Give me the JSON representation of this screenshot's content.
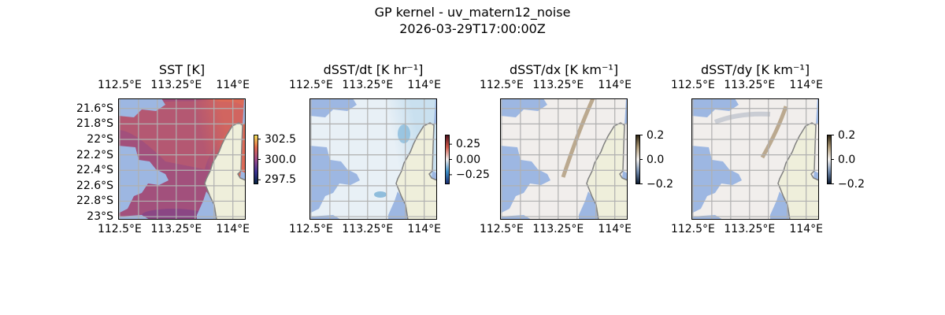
{
  "figure": {
    "title_line1": "GP kernel - uv_matern12_noise",
    "title_line2": "2026-03-29T17:00:00Z"
  },
  "map": {
    "lon_ticks": [
      "112.5°E",
      "113.25°E",
      "114°E"
    ],
    "lon_tick_values": [
      112.5,
      113.25,
      114.0
    ],
    "lat_ticks": [
      "21.6°S",
      "21.8°S",
      "22°S",
      "22.2°S",
      "22.4°S",
      "22.6°S",
      "22.8°S",
      "23°S"
    ],
    "lat_tick_values": [
      -21.6,
      -21.8,
      -22.0,
      -22.2,
      -22.4,
      -22.6,
      -22.8,
      -23.0
    ],
    "lon_range": [
      112.48,
      114.17
    ],
    "lat_range": [
      -21.47,
      -23.04
    ],
    "colors": {
      "land": "#efefdb",
      "missing": "#9db7e2",
      "coast": "#808080",
      "grid": "#b0b0b0"
    }
  },
  "panels": [
    {
      "title": "SST [K]",
      "cmap": "thermal",
      "cbar_ticks": [
        "302.5",
        "300.0",
        "297.5"
      ],
      "cbar_values": [
        302.5,
        300.0,
        297.5
      ],
      "cbar_range": [
        297.0,
        303.0
      ],
      "show_lat": true
    },
    {
      "title": "dSST/dt [K hr⁻¹]",
      "cmap": "balance",
      "cbar_ticks": [
        "0.25",
        "0.00",
        "−0.25"
      ],
      "cbar_values": [
        0.25,
        0.0,
        -0.25
      ],
      "cbar_range": [
        -0.4,
        0.4
      ],
      "show_lat": false
    },
    {
      "title": "dSST/dx [K km⁻¹]",
      "cmap": "diff",
      "cbar_ticks": [
        "0.2",
        "0.0",
        "−0.2"
      ],
      "cbar_values": [
        0.2,
        0.0,
        -0.2
      ],
      "cbar_range": [
        -0.2,
        0.2
      ],
      "show_lat": false
    },
    {
      "title": "dSST/dy [K km⁻¹]",
      "cmap": "diff",
      "cbar_ticks": [
        "0.2",
        "0.0",
        "−0.2"
      ],
      "cbar_values": [
        0.2,
        0.0,
        -0.2
      ],
      "cbar_range": [
        -0.2,
        0.2
      ],
      "show_lat": false
    }
  ]
}
